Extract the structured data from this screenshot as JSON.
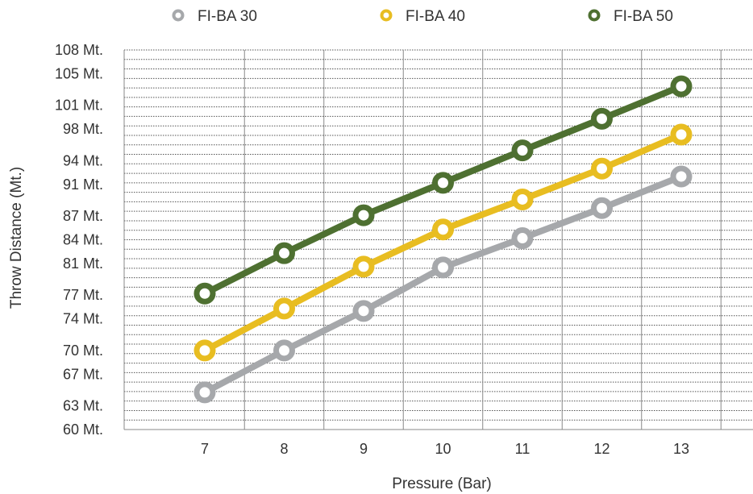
{
  "chart_data": {
    "type": "line",
    "xlabel": "Pressure (Bar)",
    "ylabel": "Throw Distance (Mt.)",
    "x": [
      7,
      8,
      9,
      10,
      11,
      12,
      13
    ],
    "x_tick_labels": [
      "7",
      "8",
      "9",
      "10",
      "11",
      "12",
      "13"
    ],
    "ylim": [
      60,
      108
    ],
    "y_tick_values": [
      60,
      63,
      67,
      70,
      74,
      77,
      81,
      84,
      87,
      91,
      94,
      98,
      101,
      105,
      108
    ],
    "y_tick_labels": [
      "60 Mt.",
      "63 Mt.",
      "67 Mt.",
      "70 Mt.",
      "74 Mt.",
      "77 Mt.",
      "81 Mt.",
      "84 Mt.",
      "87 Mt.",
      "91 Mt.",
      "94 Mt.",
      "98 Mt.",
      "101 Mt.",
      "105 Mt.",
      "108 Mt."
    ],
    "grid": true,
    "legend_position": "top",
    "series": [
      {
        "name": "FI-BA 30",
        "color": "#a6a8ab",
        "values": [
          64.7,
          70.0,
          75.0,
          80.5,
          84.2,
          88.0,
          92.0
        ]
      },
      {
        "name": "FI-BA 40",
        "color": "#e8bd21",
        "values": [
          70.0,
          75.3,
          80.6,
          85.3,
          89.1,
          93.0,
          97.3
        ]
      },
      {
        "name": "FI-BA 50",
        "color": "#4e7031",
        "values": [
          77.2,
          82.3,
          87.1,
          91.2,
          95.3,
          99.3,
          103.4
        ]
      }
    ]
  }
}
